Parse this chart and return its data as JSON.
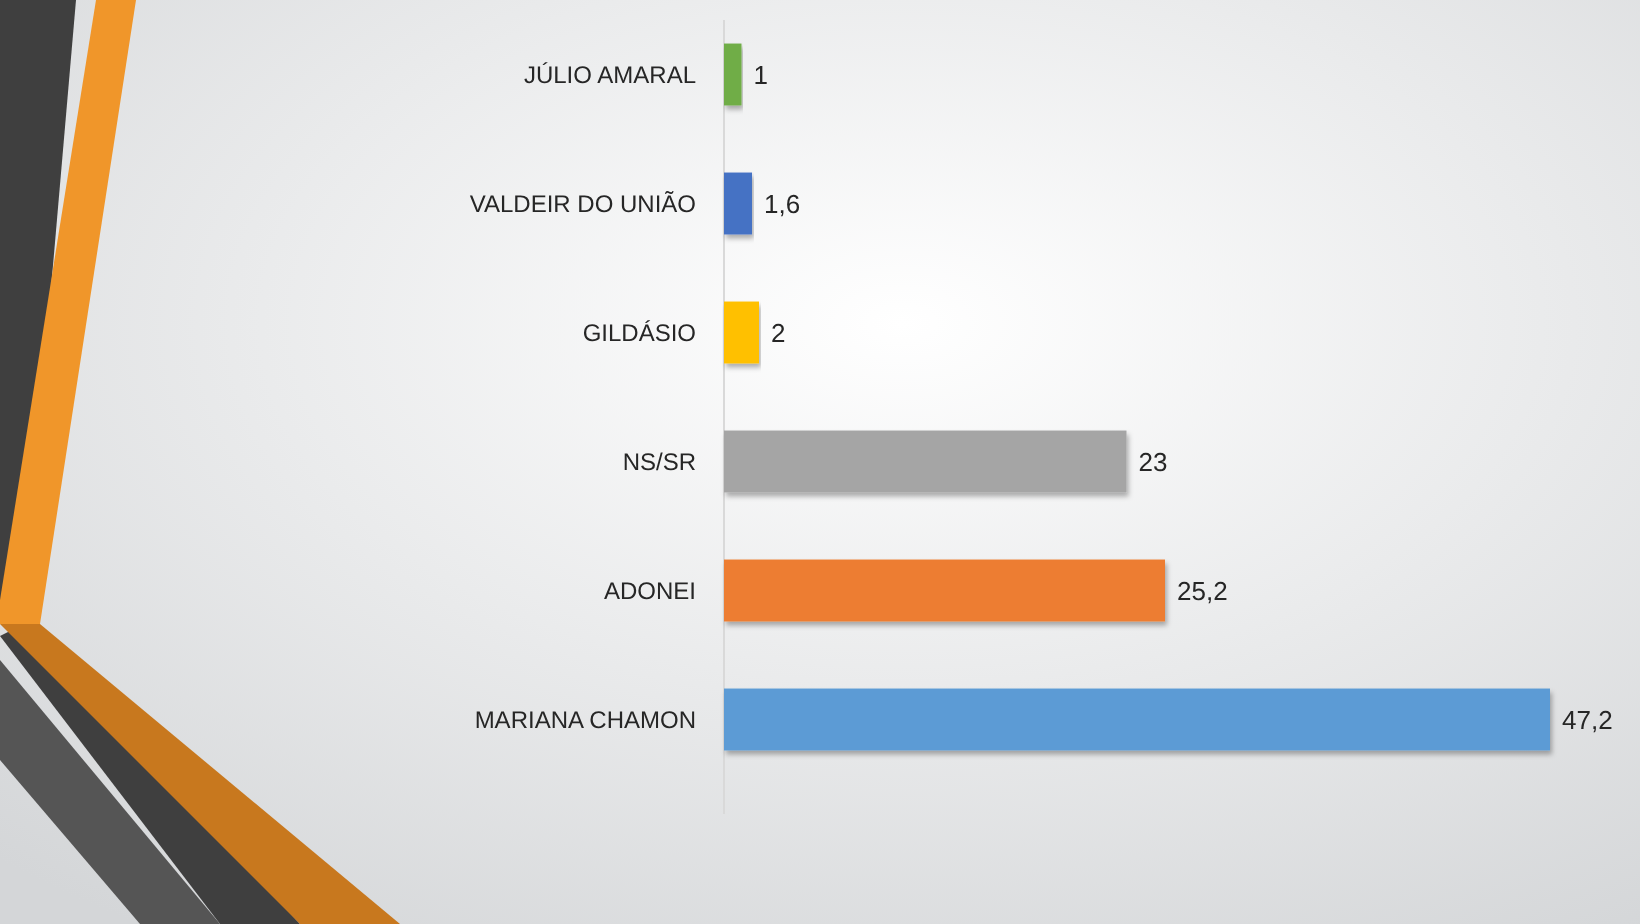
{
  "chart_data": {
    "type": "bar",
    "orientation": "horizontal",
    "categories": [
      "JÚLIO AMARAL",
      "VALDEIR DO UNIÃO",
      "GILDÁSIO",
      "NS/SR",
      "ADONEI",
      "MARIANA CHAMON"
    ],
    "values": [
      1,
      1.6,
      2,
      23,
      25.2,
      47.2
    ],
    "colors": [
      "#70ad47",
      "#4472c4",
      "#ffc000",
      "#a5a5a5",
      "#ed7d31",
      "#5b9bd5"
    ],
    "value_labels": [
      "1",
      "1,6",
      "2",
      "23",
      "25,2",
      "47,2"
    ],
    "tick_labels": "y"
  }
}
